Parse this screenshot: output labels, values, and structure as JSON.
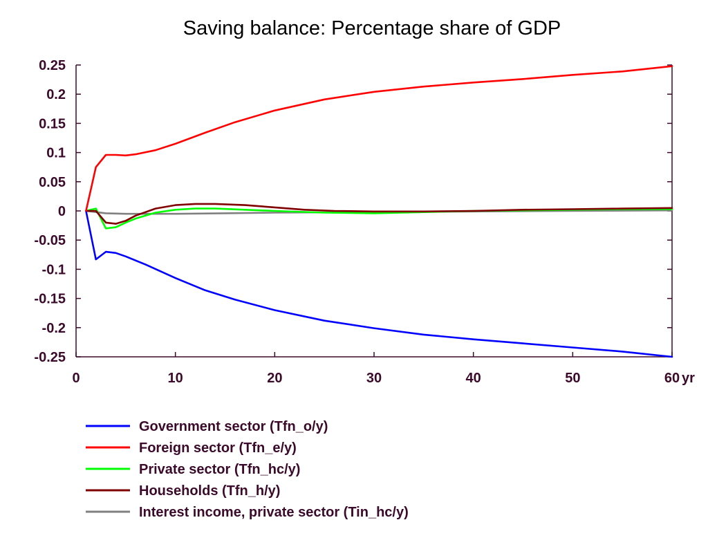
{
  "chart_data": {
    "type": "line",
    "title": "Saving balance: Percentage share of GDP",
    "xlabel": "",
    "ylabel": "",
    "x_unit_label": "yr",
    "xlim": [
      0,
      60
    ],
    "ylim": [
      -0.25,
      0.25
    ],
    "x_ticks": [
      "0",
      "10",
      "20",
      "30",
      "40",
      "50",
      "60"
    ],
    "y_ticks": [
      "0.25",
      "0.2",
      "0.15",
      "0.1",
      "0.05",
      "0",
      "-0.05",
      "-0.1",
      "-0.15",
      "-0.2",
      "-0.25"
    ],
    "grid": false,
    "legend_position": "bottom-left",
    "series": [
      {
        "name": "Government sector (Tfn_o/y)",
        "color": "#0000ff",
        "x": [
          1,
          2,
          3,
          4,
          5,
          7,
          10,
          13,
          16,
          20,
          25,
          30,
          35,
          40,
          45,
          50,
          55,
          60
        ],
        "y": [
          0,
          -0.083,
          -0.07,
          -0.072,
          -0.078,
          -0.092,
          -0.115,
          -0.136,
          -0.152,
          -0.17,
          -0.188,
          -0.201,
          -0.212,
          -0.22,
          -0.227,
          -0.234,
          -0.241,
          -0.25
        ]
      },
      {
        "name": "Foreign sector (Tfn_e/y)",
        "color": "#ff0000",
        "x": [
          1,
          2,
          3,
          4,
          5,
          6,
          8,
          10,
          13,
          16,
          20,
          25,
          30,
          35,
          40,
          45,
          50,
          55,
          60
        ],
        "y": [
          0,
          0.075,
          0.096,
          0.096,
          0.095,
          0.097,
          0.104,
          0.115,
          0.134,
          0.152,
          0.172,
          0.191,
          0.204,
          0.213,
          0.22,
          0.226,
          0.233,
          0.239,
          0.248
        ]
      },
      {
        "name": "Private sector (Tfn_hc/y)",
        "color": "#00ff00",
        "x": [
          1,
          2,
          3,
          4,
          5,
          6,
          8,
          10,
          12,
          14,
          17,
          20,
          25,
          30,
          35,
          40,
          45,
          50,
          55,
          60
        ],
        "y": [
          0,
          0.004,
          -0.03,
          -0.028,
          -0.02,
          -0.013,
          -0.003,
          0.002,
          0.004,
          0.004,
          0.002,
          0.0,
          -0.003,
          -0.004,
          -0.002,
          0.0,
          0.001,
          0.002,
          0.003,
          0.003
        ]
      },
      {
        "name": "Households (Tfn_h/y)",
        "color": "#800000",
        "x": [
          1,
          2,
          3,
          4,
          5,
          6,
          8,
          10,
          12,
          14,
          17,
          20,
          23,
          26,
          30,
          35,
          40,
          45,
          50,
          55,
          60
        ],
        "y": [
          0,
          0.0,
          -0.02,
          -0.022,
          -0.017,
          -0.008,
          0.004,
          0.01,
          0.012,
          0.012,
          0.01,
          0.006,
          0.002,
          0.0,
          -0.001,
          -0.001,
          0.0,
          0.002,
          0.003,
          0.004,
          0.005
        ]
      },
      {
        "name": "Interest income, private sector (Tin_hc/y)",
        "color": "#808080",
        "x": [
          1,
          3,
          5,
          10,
          15,
          20,
          30,
          40,
          50,
          60
        ],
        "y": [
          0,
          -0.004,
          -0.005,
          -0.005,
          -0.004,
          -0.003,
          -0.002,
          -0.001,
          0.0,
          0.001
        ]
      }
    ]
  }
}
